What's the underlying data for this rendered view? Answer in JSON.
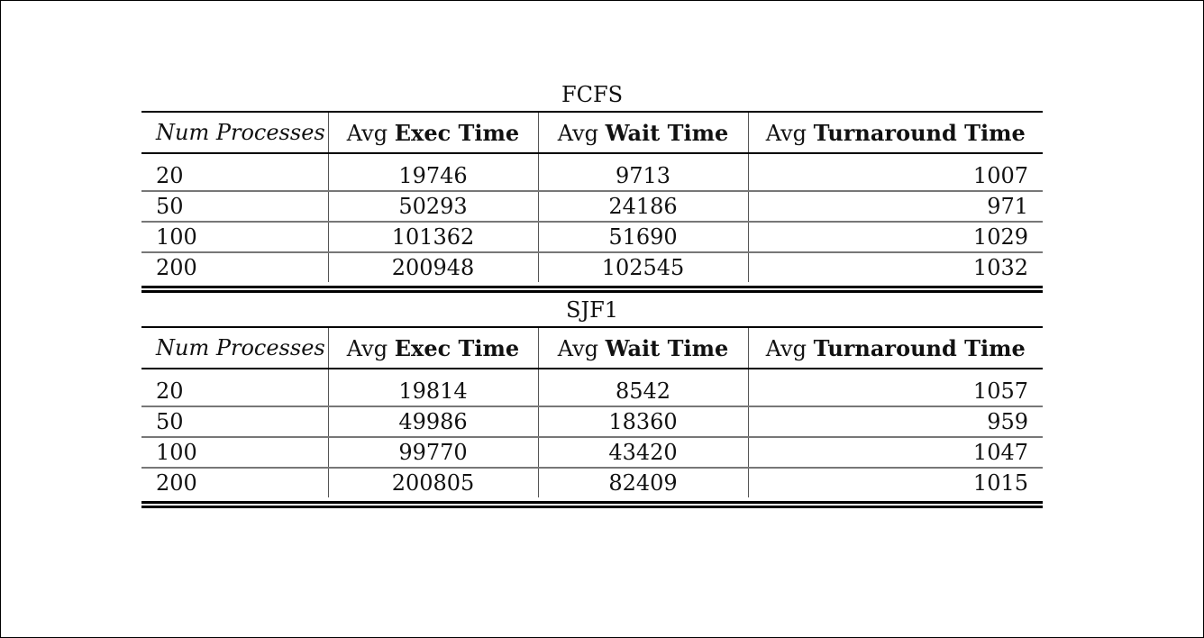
{
  "tables": [
    {
      "caption": "FCFS",
      "columns": [
        {
          "prefix": "",
          "label": "Num Processes"
        },
        {
          "prefix": "Avg ",
          "label": "Exec Time"
        },
        {
          "prefix": "Avg ",
          "label": "Wait Time"
        },
        {
          "prefix": "Avg ",
          "label": "Turnaround Time"
        }
      ],
      "rows": [
        [
          "20",
          "19746",
          "9713",
          "1007"
        ],
        [
          "50",
          "50293",
          "24186",
          "971"
        ],
        [
          "100",
          "101362",
          "51690",
          "1029"
        ],
        [
          "200",
          "200948",
          "102545",
          "1032"
        ]
      ]
    },
    {
      "caption": "SJF1",
      "columns": [
        {
          "prefix": "",
          "label": "Num Processes"
        },
        {
          "prefix": "Avg ",
          "label": "Exec Time"
        },
        {
          "prefix": "Avg ",
          "label": "Wait Time"
        },
        {
          "prefix": "Avg ",
          "label": "Turnaround Time"
        }
      ],
      "rows": [
        [
          "20",
          "19814",
          "8542",
          "1057"
        ],
        [
          "50",
          "49986",
          "18360",
          "959"
        ],
        [
          "100",
          "99770",
          "43420",
          "1047"
        ],
        [
          "200",
          "200805",
          "82409",
          "1015"
        ]
      ]
    }
  ]
}
